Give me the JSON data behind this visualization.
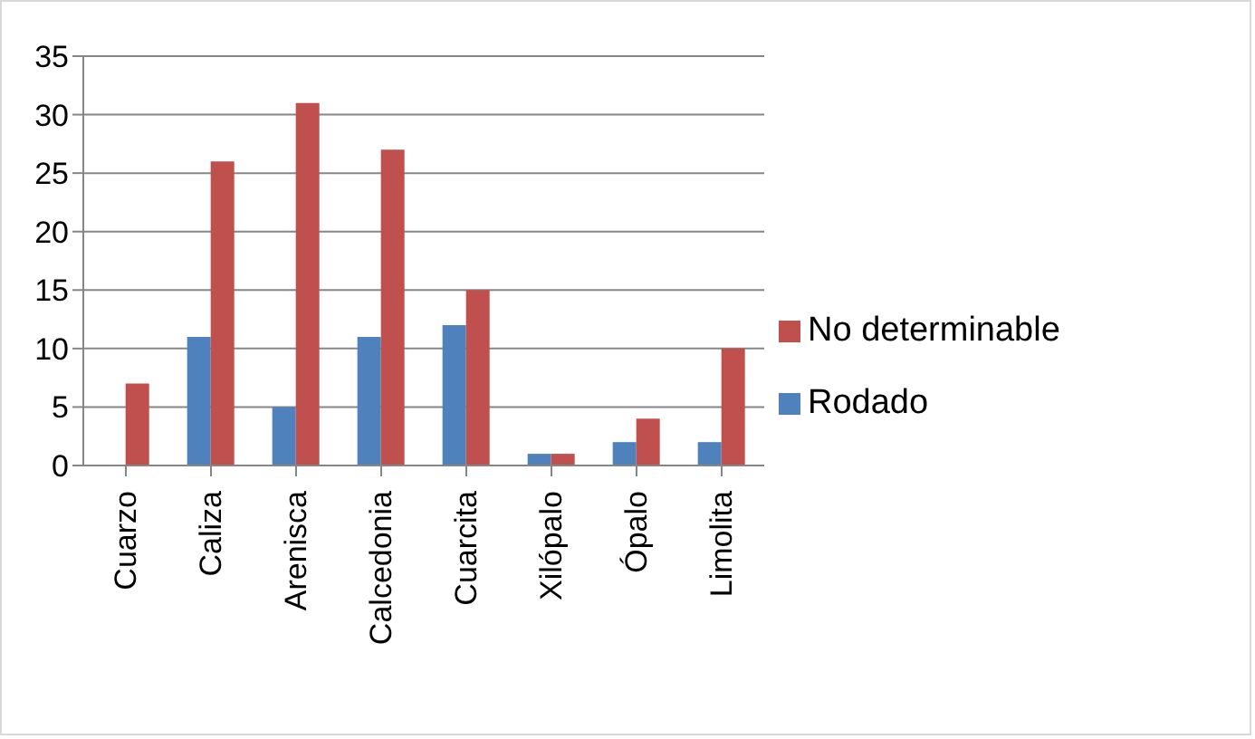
{
  "chart_data": {
    "type": "bar",
    "categories": [
      "Cuarzo",
      "Caliza",
      "Arenisca",
      "Calcedonia",
      "Cuarcita",
      "Xilópalo",
      "Ópalo",
      "Limolita"
    ],
    "series": [
      {
        "name": "Rodado",
        "color": "#4f81bd",
        "values": [
          0,
          11,
          5,
          11,
          12,
          1,
          2,
          2
        ]
      },
      {
        "name": "No determinable",
        "color": "#c0504d",
        "values": [
          7,
          26,
          31,
          27,
          15,
          1,
          4,
          10
        ]
      }
    ],
    "ylim": [
      0,
      35
    ],
    "yticks": [
      0,
      5,
      10,
      15,
      20,
      25,
      30,
      35
    ],
    "grid": "y",
    "legend": "right"
  }
}
